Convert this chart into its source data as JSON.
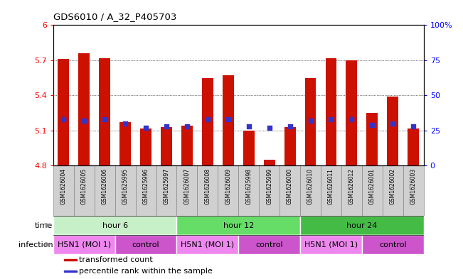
{
  "title": "GDS6010 / A_32_P405703",
  "samples": [
    "GSM1626004",
    "GSM1626005",
    "GSM1626006",
    "GSM1625995",
    "GSM1625996",
    "GSM1625997",
    "GSM1626007",
    "GSM1626008",
    "GSM1626009",
    "GSM1625998",
    "GSM1625999",
    "GSM1626000",
    "GSM1626010",
    "GSM1626011",
    "GSM1626012",
    "GSM1626001",
    "GSM1626002",
    "GSM1626003"
  ],
  "transformed_counts": [
    5.71,
    5.76,
    5.72,
    5.17,
    5.12,
    5.13,
    5.14,
    5.55,
    5.57,
    5.1,
    4.85,
    5.13,
    5.55,
    5.72,
    5.7,
    5.25,
    5.39,
    5.12
  ],
  "percentile_ranks": [
    33,
    32,
    33,
    30,
    27,
    28,
    28,
    33,
    33,
    28,
    27,
    28,
    32,
    33,
    33,
    29,
    30,
    28
  ],
  "bar_bottom": 4.8,
  "ylim_left": [
    4.8,
    6.0
  ],
  "ylim_right": [
    0,
    100
  ],
  "yticks_left": [
    4.8,
    5.1,
    5.4,
    5.7,
    6.0
  ],
  "yticks_right": [
    0,
    25,
    50,
    75,
    100
  ],
  "ytick_labels_left": [
    "4.8",
    "5.1",
    "5.4",
    "5.7",
    "6"
  ],
  "ytick_labels_right": [
    "0",
    "25",
    "50",
    "75",
    "100%"
  ],
  "bar_color": "#CC1100",
  "dot_color": "#3333CC",
  "time_groups": [
    {
      "label": "hour 6",
      "start": 0,
      "end": 6,
      "color": "#C8F0C8"
    },
    {
      "label": "hour 12",
      "start": 6,
      "end": 12,
      "color": "#66DD66"
    },
    {
      "label": "hour 24",
      "start": 12,
      "end": 18,
      "color": "#44BB44"
    }
  ],
  "infection_groups": [
    {
      "label": "H5N1 (MOI 1)",
      "start": 0,
      "end": 3,
      "color": "#EE88EE"
    },
    {
      "label": "control",
      "start": 3,
      "end": 6,
      "color": "#CC55CC"
    },
    {
      "label": "H5N1 (MOI 1)",
      "start": 6,
      "end": 9,
      "color": "#EE88EE"
    },
    {
      "label": "control",
      "start": 9,
      "end": 12,
      "color": "#CC55CC"
    },
    {
      "label": "H5N1 (MOI 1)",
      "start": 12,
      "end": 15,
      "color": "#EE88EE"
    },
    {
      "label": "control",
      "start": 15,
      "end": 18,
      "color": "#CC55CC"
    }
  ],
  "time_row_label": "time",
  "infection_row_label": "infection",
  "legend_items": [
    {
      "color": "#CC1100",
      "label": "transformed count"
    },
    {
      "color": "#3333CC",
      "label": "percentile rank within the sample"
    }
  ],
  "sample_bg_color": "#D0D0D0",
  "sample_edge_color": "#888888"
}
